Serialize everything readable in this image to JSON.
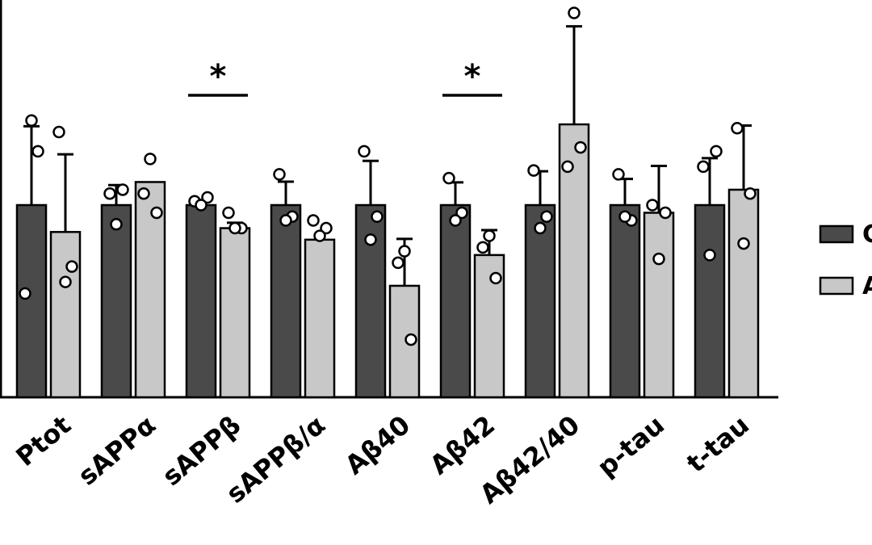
{
  "chart_data": {
    "type": "bar",
    "categories": [
      "Ptot",
      "sAPPα",
      "sAPPβ",
      "sAPPβ/α",
      "Aβ40",
      "Aβ42",
      "Aβ42/40",
      "p-tau",
      "t-tau"
    ],
    "ylim": [
      0,
      100
    ],
    "series": [
      {
        "name": "C",
        "color": "#4a4a4a",
        "values": [
          50,
          50,
          50,
          50,
          50,
          50,
          50,
          50,
          50
        ],
        "error": [
          20.5,
          5.2,
          0,
          6.1,
          11.5,
          5.9,
          8.8,
          6.8,
          12.2
        ],
        "points": [
          [
            27,
            64,
            72
          ],
          [
            53,
            54,
            45
          ],
          [
            51,
            52,
            50
          ],
          [
            58,
            47,
            46
          ],
          [
            64,
            47,
            41
          ],
          [
            57,
            48,
            46
          ],
          [
            59,
            47,
            44
          ],
          [
            58,
            46,
            47
          ],
          [
            60,
            64,
            37
          ]
        ]
      },
      {
        "name": "A",
        "color": "#c8c8c8",
        "values": [
          43,
          56,
          44,
          41,
          29,
          37,
          71,
          48,
          54
        ],
        "error": [
          20.2,
          0,
          1.4,
          0,
          12.2,
          6.5,
          25.5,
          12.2,
          16.7
        ],
        "points": [
          [
            69,
            34,
            30
          ],
          [
            53,
            48,
            62
          ],
          [
            48,
            44,
            44
          ],
          [
            46,
            44,
            42
          ],
          [
            35,
            15,
            38
          ],
          [
            39,
            31,
            42
          ],
          [
            60,
            65,
            100
          ],
          [
            50,
            48,
            36
          ],
          [
            70,
            53,
            40
          ]
        ]
      }
    ],
    "significance": [
      {
        "category": "sAPPβ",
        "label": "*"
      },
      {
        "category": "Aβ42",
        "label": "*"
      }
    ],
    "legend": {
      "placement": "right",
      "entries": [
        "C",
        "A"
      ]
    }
  }
}
